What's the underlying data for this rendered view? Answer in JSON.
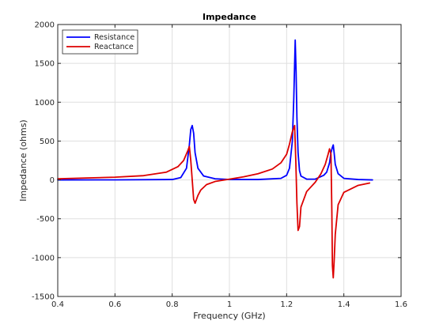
{
  "chart_data": {
    "type": "line",
    "title": "Impedance",
    "xlabel": "Frequency (GHz)",
    "ylabel": "Impedance (ohms)",
    "xlim": [
      0.4,
      1.6
    ],
    "ylim": [
      -1500,
      2000
    ],
    "xticks": [
      0.4,
      0.6,
      0.8,
      1,
      1.2,
      1.4,
      1.6
    ],
    "xtick_labels": [
      "0.4",
      "0.6",
      "0.8",
      "1",
      "1.2",
      "1.4",
      "1.6"
    ],
    "yticks": [
      -1500,
      -1000,
      -500,
      0,
      500,
      1000,
      1500,
      2000
    ],
    "ytick_labels": [
      "-1500",
      "-1000",
      "-500",
      "0",
      "500",
      "1000",
      "1500",
      "2000"
    ],
    "grid": true,
    "legend_position": "top-left",
    "series": [
      {
        "name": "Resistance",
        "color": "#0000ff",
        "x": [
          0.4,
          0.6,
          0.8,
          0.83,
          0.85,
          0.86,
          0.865,
          0.87,
          0.875,
          0.88,
          0.89,
          0.91,
          0.95,
          1.0,
          1.1,
          1.18,
          1.2,
          1.21,
          1.22,
          1.225,
          1.23,
          1.233,
          1.236,
          1.24,
          1.245,
          1.25,
          1.27,
          1.3,
          1.33,
          1.34,
          1.35,
          1.355,
          1.36,
          1.363,
          1.366,
          1.37,
          1.38,
          1.4,
          1.45,
          1.5
        ],
        "y": [
          0,
          1,
          5,
          30,
          150,
          450,
          650,
          700,
          600,
          350,
          150,
          50,
          15,
          5,
          5,
          20,
          60,
          150,
          500,
          1050,
          1800,
          1400,
          800,
          350,
          120,
          50,
          10,
          10,
          60,
          100,
          220,
          350,
          420,
          450,
          350,
          200,
          80,
          20,
          5,
          0
        ]
      },
      {
        "name": "Reactance",
        "color": "#dd0000",
        "x": [
          0.4,
          0.5,
          0.6,
          0.7,
          0.78,
          0.82,
          0.84,
          0.855,
          0.86,
          0.865,
          0.87,
          0.875,
          0.88,
          0.89,
          0.9,
          0.92,
          0.95,
          1.0,
          1.05,
          1.1,
          1.15,
          1.18,
          1.2,
          1.21,
          1.22,
          1.228,
          1.232,
          1.236,
          1.24,
          1.245,
          1.25,
          1.27,
          1.3,
          1.32,
          1.335,
          1.345,
          1.35,
          1.355,
          1.358,
          1.36,
          1.363,
          1.366,
          1.37,
          1.38,
          1.4,
          1.45,
          1.49
        ],
        "y": [
          15,
          25,
          35,
          55,
          100,
          170,
          250,
          380,
          430,
          250,
          0,
          -250,
          -300,
          -200,
          -130,
          -60,
          -20,
          10,
          40,
          80,
          140,
          220,
          330,
          460,
          620,
          700,
          250,
          -300,
          -650,
          -600,
          -350,
          -150,
          -30,
          80,
          200,
          330,
          400,
          330,
          -400,
          -1100,
          -1260,
          -1050,
          -700,
          -320,
          -160,
          -70,
          -40
        ]
      }
    ]
  }
}
